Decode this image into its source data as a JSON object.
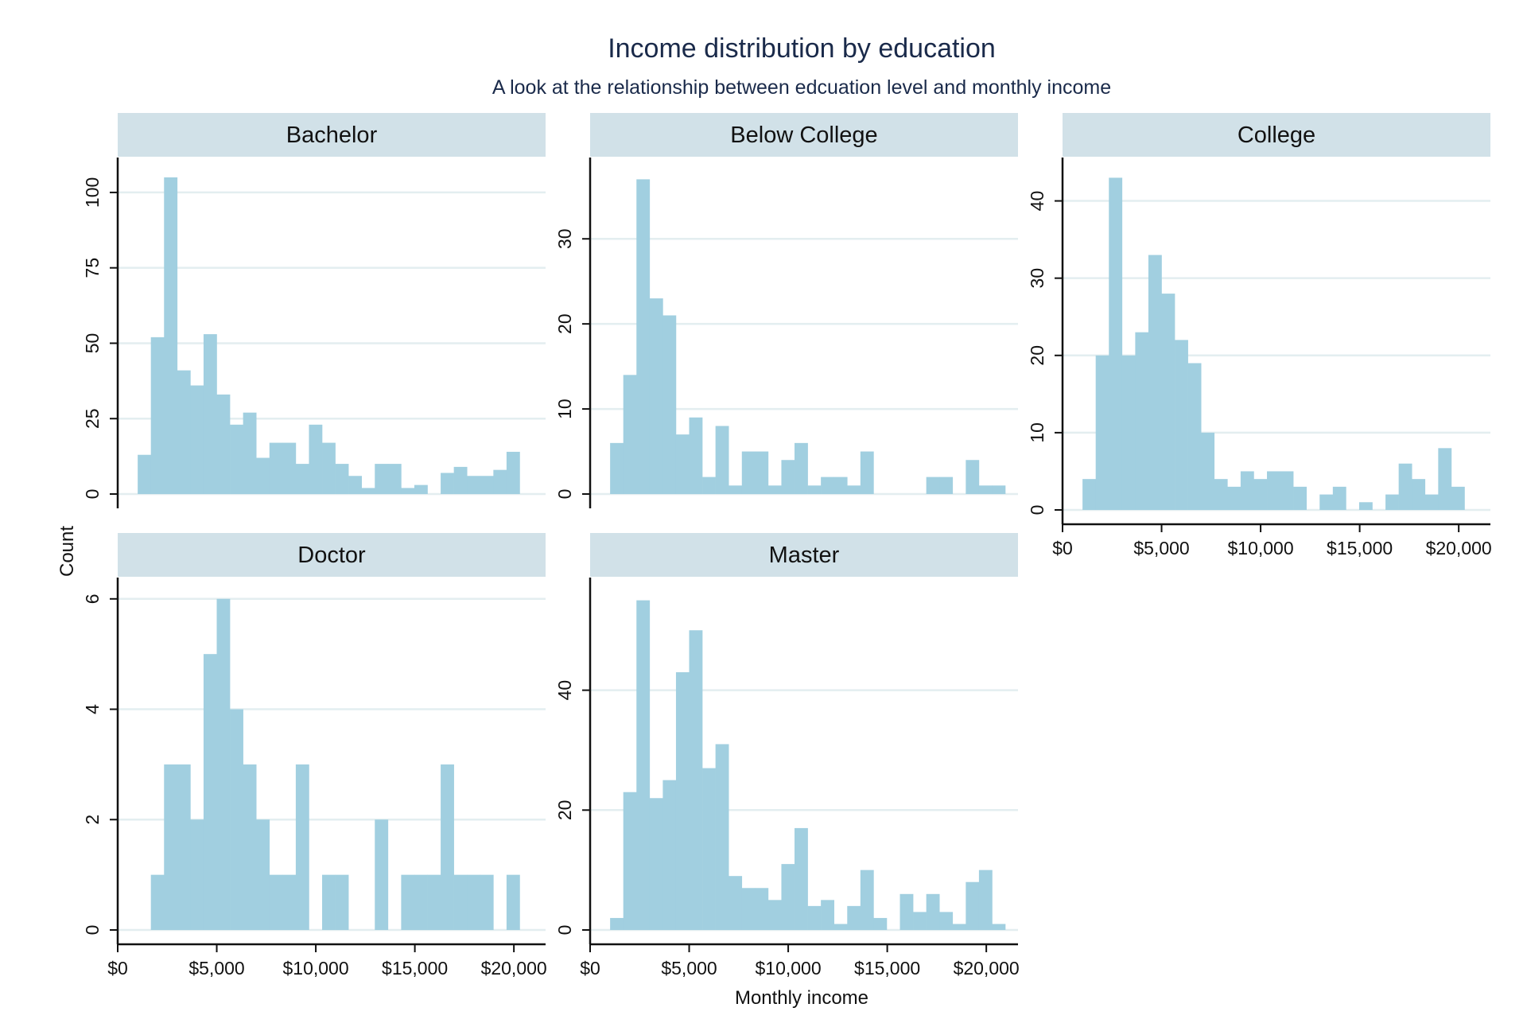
{
  "title": "Income distribution by education",
  "subtitle": "A look at the relationship between edcuation level and monthly income",
  "xlabel": "Monthly income",
  "ylabel": "Count",
  "colors": {
    "bar": "#a1cfe0",
    "strip": "#d1e1e8",
    "grid": "#e3eef0",
    "axis": "#111111"
  },
  "chart_data": {
    "type": "bar",
    "bin_width": 665,
    "bin_start": 1009,
    "x_ticks": [
      {
        "value": 0,
        "label": "$0"
      },
      {
        "value": 5000,
        "label": "$5,000"
      },
      {
        "value": 10000,
        "label": "$10,000"
      },
      {
        "value": 15000,
        "label": "$15,000"
      },
      {
        "value": 20000,
        "label": "$20,000"
      }
    ],
    "xlim": [
      0,
      21600
    ],
    "panels": [
      {
        "name": "Bachelor",
        "ylim": [
          0,
          110
        ],
        "y_ticks": [
          {
            "value": 0,
            "label": "0"
          },
          {
            "value": 25,
            "label": "25"
          },
          {
            "value": 50,
            "label": "50"
          },
          {
            "value": 75,
            "label": "75"
          },
          {
            "value": 100,
            "label": "100"
          }
        ],
        "counts": [
          13,
          52,
          105,
          41,
          36,
          53,
          33,
          23,
          27,
          12,
          17,
          17,
          10,
          23,
          17,
          10,
          6,
          2,
          10,
          10,
          2,
          3,
          0,
          7,
          9,
          6,
          6,
          8,
          14
        ]
      },
      {
        "name": "Below College",
        "ylim": [
          0,
          39
        ],
        "y_ticks": [
          {
            "value": 0,
            "label": "0"
          },
          {
            "value": 10,
            "label": "10"
          },
          {
            "value": 20,
            "label": "20"
          },
          {
            "value": 30,
            "label": "30"
          }
        ],
        "counts": [
          6,
          14,
          37,
          23,
          21,
          7,
          9,
          2,
          8,
          1,
          5,
          5,
          1,
          4,
          6,
          1,
          2,
          2,
          1,
          5,
          0,
          0,
          0,
          0,
          2,
          2,
          0,
          4,
          1,
          1
        ]
      },
      {
        "name": "College",
        "ylim": [
          0,
          45
        ],
        "y_ticks": [
          {
            "value": 0,
            "label": "0"
          },
          {
            "value": 10,
            "label": "10"
          },
          {
            "value": 20,
            "label": "20"
          },
          {
            "value": 30,
            "label": "30"
          },
          {
            "value": 40,
            "label": "40"
          }
        ],
        "counts": [
          4,
          20,
          43,
          20,
          23,
          33,
          28,
          22,
          19,
          10,
          4,
          3,
          5,
          4,
          5,
          5,
          3,
          0,
          2,
          3,
          0,
          1,
          0,
          2,
          6,
          4,
          2,
          8,
          3
        ]
      },
      {
        "name": "Doctor",
        "ylim": [
          0,
          6.3
        ],
        "y_ticks": [
          {
            "value": 0,
            "label": "0"
          },
          {
            "value": 2,
            "label": "2"
          },
          {
            "value": 4,
            "label": "4"
          },
          {
            "value": 6,
            "label": "6"
          }
        ],
        "counts": [
          0,
          1,
          3,
          3,
          2,
          5,
          6,
          4,
          3,
          2,
          1,
          1,
          3,
          0,
          1,
          1,
          0,
          0,
          2,
          0,
          1,
          1,
          1,
          3,
          1,
          1,
          1,
          0,
          1
        ]
      },
      {
        "name": "Master",
        "ylim": [
          0,
          58
        ],
        "y_ticks": [
          {
            "value": 0,
            "label": "0"
          },
          {
            "value": 20,
            "label": "20"
          },
          {
            "value": 40,
            "label": "40"
          }
        ],
        "counts": [
          2,
          23,
          55,
          22,
          25,
          43,
          50,
          27,
          31,
          9,
          7,
          7,
          5,
          11,
          17,
          4,
          5,
          1,
          4,
          10,
          2,
          0,
          6,
          3,
          6,
          3,
          1,
          8,
          10,
          1
        ]
      }
    ]
  }
}
